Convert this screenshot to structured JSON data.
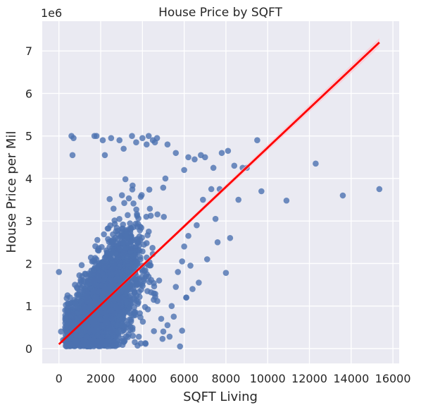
{
  "chart_data": {
    "type": "scatter",
    "title": "House Price by SQFT",
    "xlabel": "SQFT Living",
    "ylabel": "House Price per Mil",
    "y_offset_label": "1e6",
    "xlim": [
      -800,
      16300
    ],
    "ylim": [
      -0.35,
      7.7
    ],
    "xticks": [
      0,
      2000,
      4000,
      6000,
      8000,
      10000,
      12000,
      14000,
      16000
    ],
    "xtick_labels": [
      "0",
      "2000",
      "4000",
      "6000",
      "8000",
      "10000",
      "12000",
      "14000",
      "16000"
    ],
    "yticks": [
      0,
      1,
      2,
      3,
      4,
      5,
      6,
      7
    ],
    "ytick_labels": [
      "0",
      "1",
      "2",
      "3",
      "4",
      "5",
      "6",
      "7"
    ],
    "grid": true,
    "colors": {
      "background": "#eaeaf2",
      "grid": "#ffffff",
      "points": "#4c72b0",
      "regression": "#ff0000",
      "ci_band": "#ffc0cb"
    },
    "regression": {
      "x": [
        0,
        15350
      ],
      "y": [
        0.1,
        7.2
      ]
    },
    "points_note_series": {
      "name": "",
      "x": [
        0,
        600,
        700,
        650,
        1700,
        1800,
        2100,
        2200,
        2500,
        2900,
        3100,
        3500,
        3700,
        4000,
        4200,
        4300,
        4500,
        4600,
        4700,
        5100,
        5200,
        5600,
        6000,
        6200,
        6500,
        6800,
        7000,
        7300,
        7400,
        7700,
        7800,
        8000,
        8100,
        8400,
        8600,
        8800,
        9000,
        9500,
        9700,
        10900,
        12300,
        13600,
        15350,
        5500,
        6100,
        6300,
        6600,
        7600,
        8200,
        5900,
        5200,
        5800,
        6100,
        6700,
        7100,
        500,
        400,
        300,
        200,
        100,
        800,
        900,
        1000,
        1200,
        1500,
        5000,
        5300,
        5400,
        4800,
        4900,
        5700,
        6400,
        6900,
        7500,
        300,
        5600,
        6200,
        6000,
        5900
      ],
      "y": [
        1.8,
        5.0,
        4.95,
        4.55,
        5.0,
        5.0,
        4.9,
        4.55,
        4.95,
        4.9,
        4.7,
        5.0,
        4.85,
        4.95,
        4.8,
        5.0,
        4.9,
        4.85,
        4.95,
        4.0,
        4.8,
        4.6,
        4.2,
        4.5,
        4.45,
        4.55,
        4.5,
        3.75,
        4.25,
        3.75,
        4.6,
        1.78,
        4.65,
        4.3,
        3.5,
        4.25,
        4.25,
        4.9,
        3.7,
        3.48,
        4.35,
        3.6,
        3.75,
        0.75,
        1.2,
        1.95,
        2.9,
        2.5,
        2.6,
        0.42,
        0.55,
        0.05,
        1.2,
        1.55,
        2.1,
        0.1,
        0.3,
        0.5,
        0.2,
        0.4,
        0.2,
        0.15,
        0.1,
        0.08,
        0.05,
        0.4,
        0.28,
        1.0,
        1.6,
        0.7,
        1.8,
        1.4,
        3.5,
        3.05,
        0.9,
        1.45,
        2.65,
        2.4,
        2.05
      ]
    }
  }
}
